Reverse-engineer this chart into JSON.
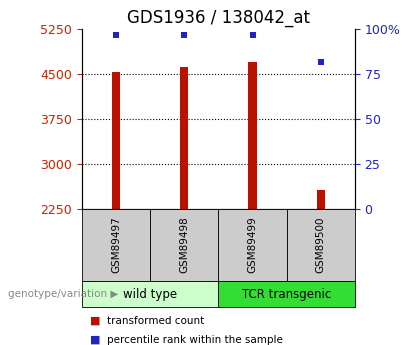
{
  "title": "GDS1936 / 138042_at",
  "samples": [
    "GSM89497",
    "GSM89498",
    "GSM89499",
    "GSM89500"
  ],
  "transformed_counts": [
    4540,
    4625,
    4710,
    2570
  ],
  "percentile_ranks": [
    97,
    97,
    97,
    82
  ],
  "ylim_left": [
    2250,
    5250
  ],
  "ylim_right": [
    0,
    100
  ],
  "yticks_left": [
    2250,
    3000,
    3750,
    4500,
    5250
  ],
  "yticks_right": [
    0,
    25,
    50,
    75,
    100
  ],
  "ytick_labels_right": [
    "0",
    "25",
    "50",
    "75",
    "100%"
  ],
  "bar_color": "#bb1100",
  "dot_color": "#2222cc",
  "bar_width": 0.12,
  "groups": [
    {
      "label": "wild type",
      "indices": [
        0,
        1
      ],
      "color": "#ccffcc"
    },
    {
      "label": "TCR transgenic",
      "indices": [
        2,
        3
      ],
      "color": "#33dd33"
    }
  ],
  "group_label_prefix": "genotype/variation",
  "sample_box_color": "#cccccc",
  "legend_bar_label": "transformed count",
  "legend_dot_label": "percentile rank within the sample",
  "axis_left_color": "#cc2200",
  "axis_right_color": "#2222cc",
  "grid_color": "#000000",
  "title_fontsize": 12,
  "tick_fontsize": 9,
  "label_fontsize": 8
}
